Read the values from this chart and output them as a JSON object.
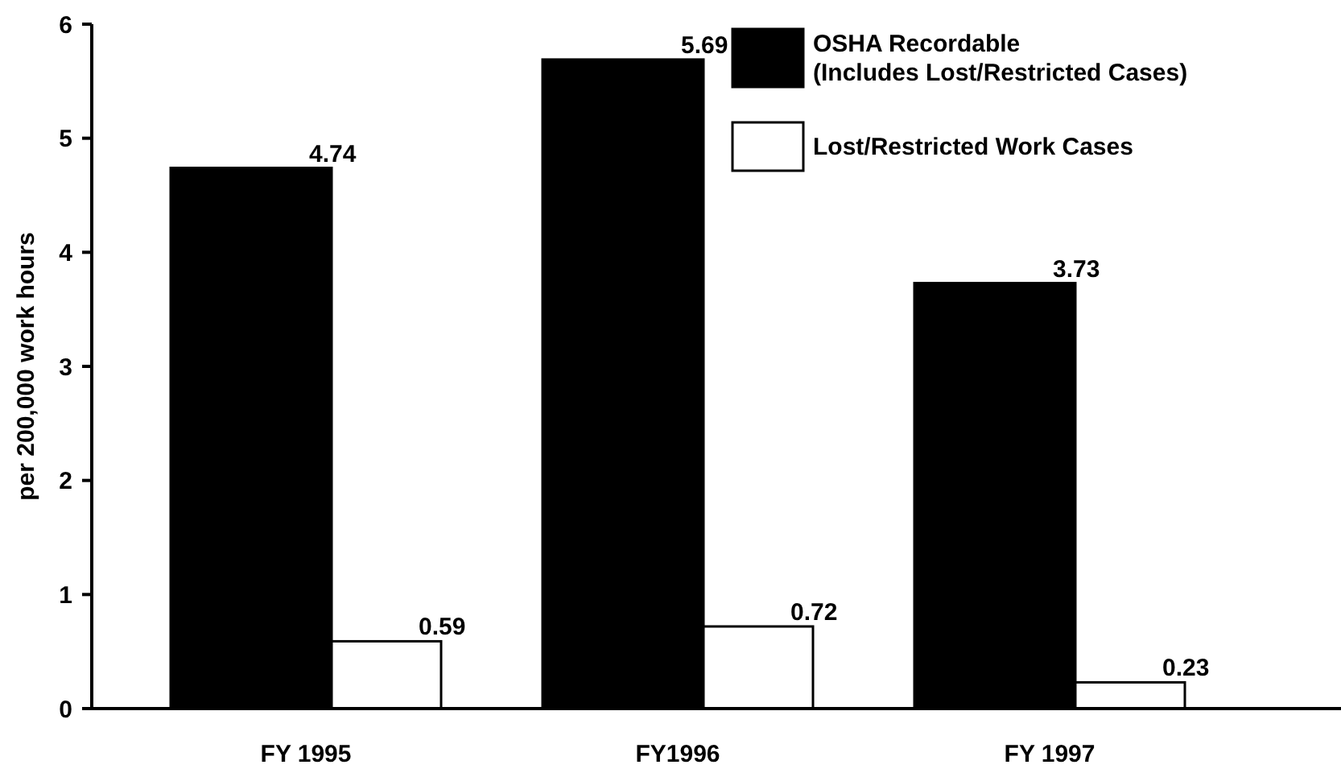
{
  "chart_data": {
    "type": "bar",
    "ylabel": "per 200,000 work hours",
    "categories": [
      "FY 1995",
      "FY1996",
      "FY 1997"
    ],
    "series": [
      {
        "name": "OSHA Recordable\n(Includes Lost/Restricted Cases)",
        "color": "#000000",
        "values": [
          4.74,
          5.69,
          3.73
        ]
      },
      {
        "name": "Lost/Restricted Work Cases",
        "color": "#ffffff",
        "values": [
          0.59,
          0.72,
          0.23
        ]
      }
    ],
    "ylim": [
      0,
      6
    ],
    "yticks": [
      0,
      1,
      2,
      3,
      4,
      5,
      6
    ],
    "data_labels": true,
    "legend": "top right",
    "grid": false
  }
}
